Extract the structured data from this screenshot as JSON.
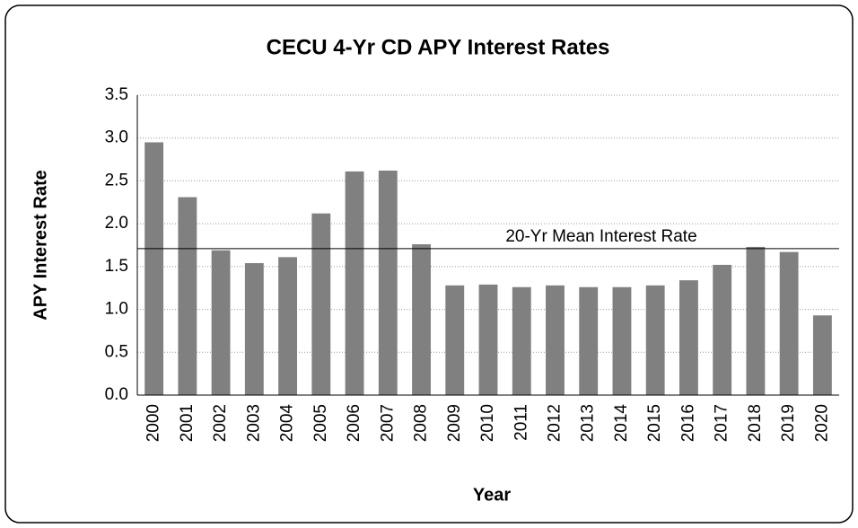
{
  "chart_data": {
    "type": "bar",
    "title": "CECU 4-Yr CD APY Interest Rates",
    "x_label": "Year",
    "y_label": "APY Interest Rate",
    "categories": [
      "2000",
      "2001",
      "2002",
      "2003",
      "2004",
      "2005",
      "2006",
      "2007",
      "2008",
      "2009",
      "2010",
      "2011",
      "2012",
      "2013",
      "2014",
      "2015",
      "2016",
      "2017",
      "2018",
      "2019",
      "2020"
    ],
    "values": [
      2.95,
      2.31,
      1.69,
      1.54,
      1.61,
      2.12,
      2.61,
      2.62,
      1.76,
      1.28,
      1.29,
      1.26,
      1.28,
      1.26,
      1.26,
      1.28,
      1.34,
      1.52,
      1.73,
      1.67,
      0.93
    ],
    "color": "#808080",
    "ylim": [
      0,
      3.5
    ],
    "yticks": [
      {
        "value": 0,
        "label": "0.0"
      },
      0.5,
      {
        "value": 1,
        "label": "1.0"
      },
      1.5,
      {
        "value": 2,
        "label": "2.0"
      },
      2.5,
      {
        "value": 3,
        "label": "3.0"
      },
      3.5
    ],
    "grid": true,
    "mean_line": {
      "value": 1.71,
      "label": "20-Yr Mean Interest Rate"
    }
  }
}
